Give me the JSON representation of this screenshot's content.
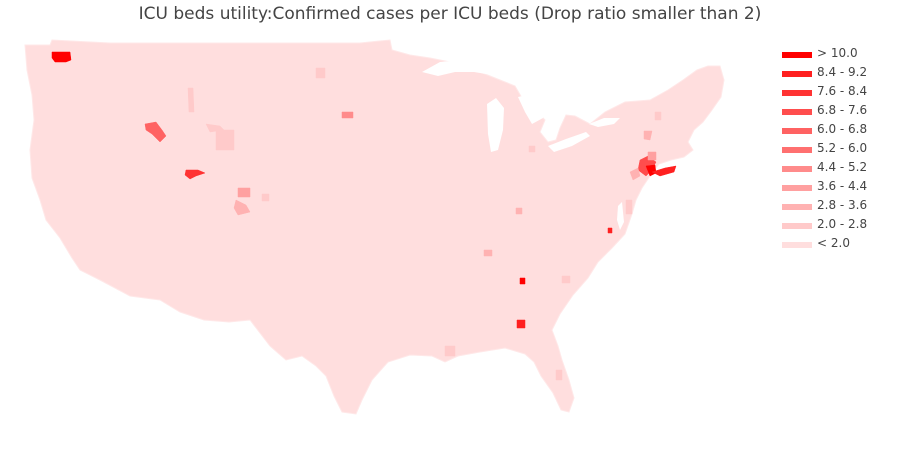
{
  "title": "ICU beds utility:Confirmed cases per ICU beds (Drop ratio smaller than 2)",
  "colors": {
    "background": "#ffffff",
    "title": "#444444",
    "base_fill": "#ffdede",
    "border": "#ffe8e8"
  },
  "legend": {
    "placement": "right",
    "items": [
      {
        "label": "> 10.0",
        "color": "#ff0000"
      },
      {
        "label": "8.4 - 9.2",
        "color": "#ff2020"
      },
      {
        "label": "7.6 - 8.4",
        "color": "#ff3333"
      },
      {
        "label": "6.8 - 7.6",
        "color": "#ff4d4d"
      },
      {
        "label": "6.0 - 6.8",
        "color": "#ff6262"
      },
      {
        "label": "5.2 - 6.0",
        "color": "#ff7070"
      },
      {
        "label": "4.4 - 5.2",
        "color": "#ff8b8b"
      },
      {
        "label": "3.6 - 4.4",
        "color": "#ffa0a0"
      },
      {
        "label": "2.8 - 3.6",
        "color": "#ffb2b2"
      },
      {
        "label": "2.0 - 2.8",
        "color": "#ffcaca"
      },
      {
        "label": "< 2.0",
        "color": "#ffdede"
      }
    ]
  },
  "map": {
    "type": "choropleth",
    "region": "contiguous United States",
    "unit": "county / hospital referral region"
  }
}
